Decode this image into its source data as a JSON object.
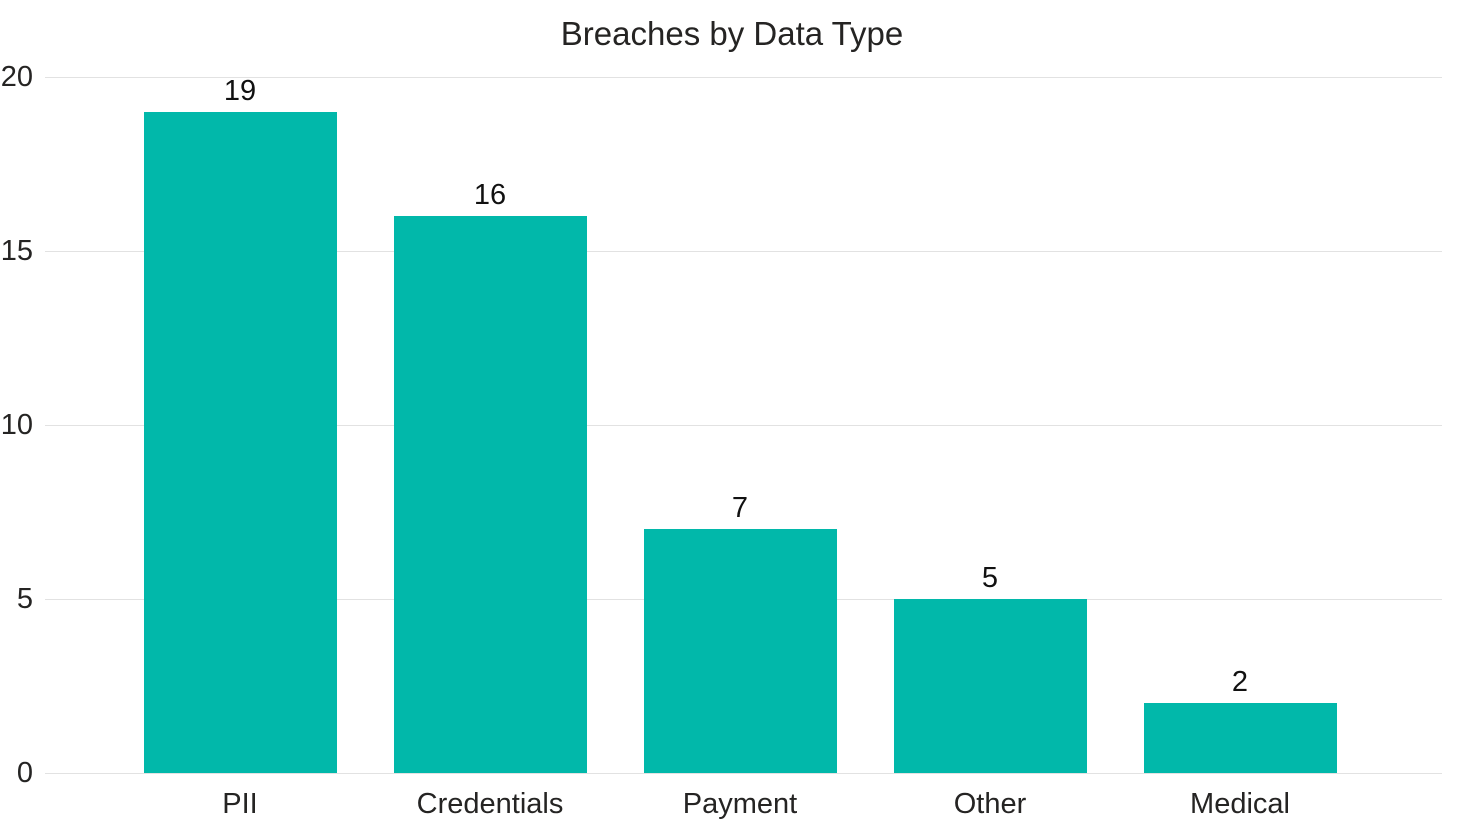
{
  "chart_data": {
    "type": "bar",
    "title": "Breaches by Data Type",
    "categories": [
      "PII",
      "Credentials",
      "Payment",
      "Other",
      "Medical"
    ],
    "values": [
      19,
      16,
      7,
      5,
      2
    ],
    "xlabel": "",
    "ylabel": "",
    "ylim": [
      0,
      20
    ],
    "yticks": [
      0,
      5,
      10,
      15,
      20
    ],
    "grid": "horizontal-only",
    "legend": "none",
    "bar_color": "#01B8AA",
    "gridline_color": "#e2e2e2",
    "title_color": "#252423",
    "axis_label_color": "#252423",
    "data_label_color": "#111111"
  }
}
